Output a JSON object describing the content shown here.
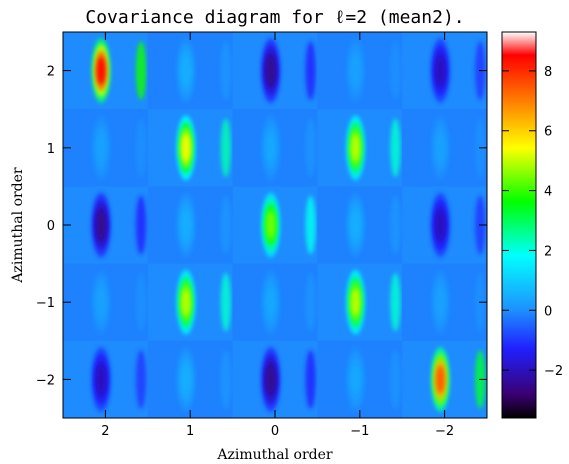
{
  "chart_data": {
    "type": "heatmap",
    "title": "Covariance diagram for ℓ=2 (mean2).",
    "xlabel": "Azimuthal order",
    "ylabel": "Azimuthal order",
    "x_categories": [
      "2",
      "1",
      "0",
      "−1",
      "−2"
    ],
    "y_categories": [
      "2",
      "1",
      "0",
      "−1",
      "−2"
    ],
    "colorbar": {
      "min": -3.6,
      "max": 9.3,
      "ticks": [
        -2,
        0,
        2,
        4,
        6,
        8
      ],
      "tick_labels": [
        "−2",
        "0",
        "2",
        "4",
        "6",
        "8"
      ]
    },
    "block_peaks": [
      [
        8.5,
        0.5,
        -2.5,
        0.3,
        -2.0
      ],
      [
        0.3,
        5.5,
        0.4,
        5.0,
        0.3
      ],
      [
        -2.5,
        0.5,
        4.5,
        0.5,
        -2.0
      ],
      [
        0.3,
        5.0,
        0.4,
        5.0,
        0.3
      ],
      [
        -2.0,
        0.5,
        -2.5,
        0.4,
        7.5
      ]
    ],
    "colors": {
      "background_value": -0.2,
      "colormap": [
        "#000000",
        "#3a0070",
        "#2020ff",
        "#1e90ff",
        "#00ffff",
        "#00ff00",
        "#ffff00",
        "#ff8000",
        "#ff0000",
        "#ffffff"
      ]
    }
  }
}
